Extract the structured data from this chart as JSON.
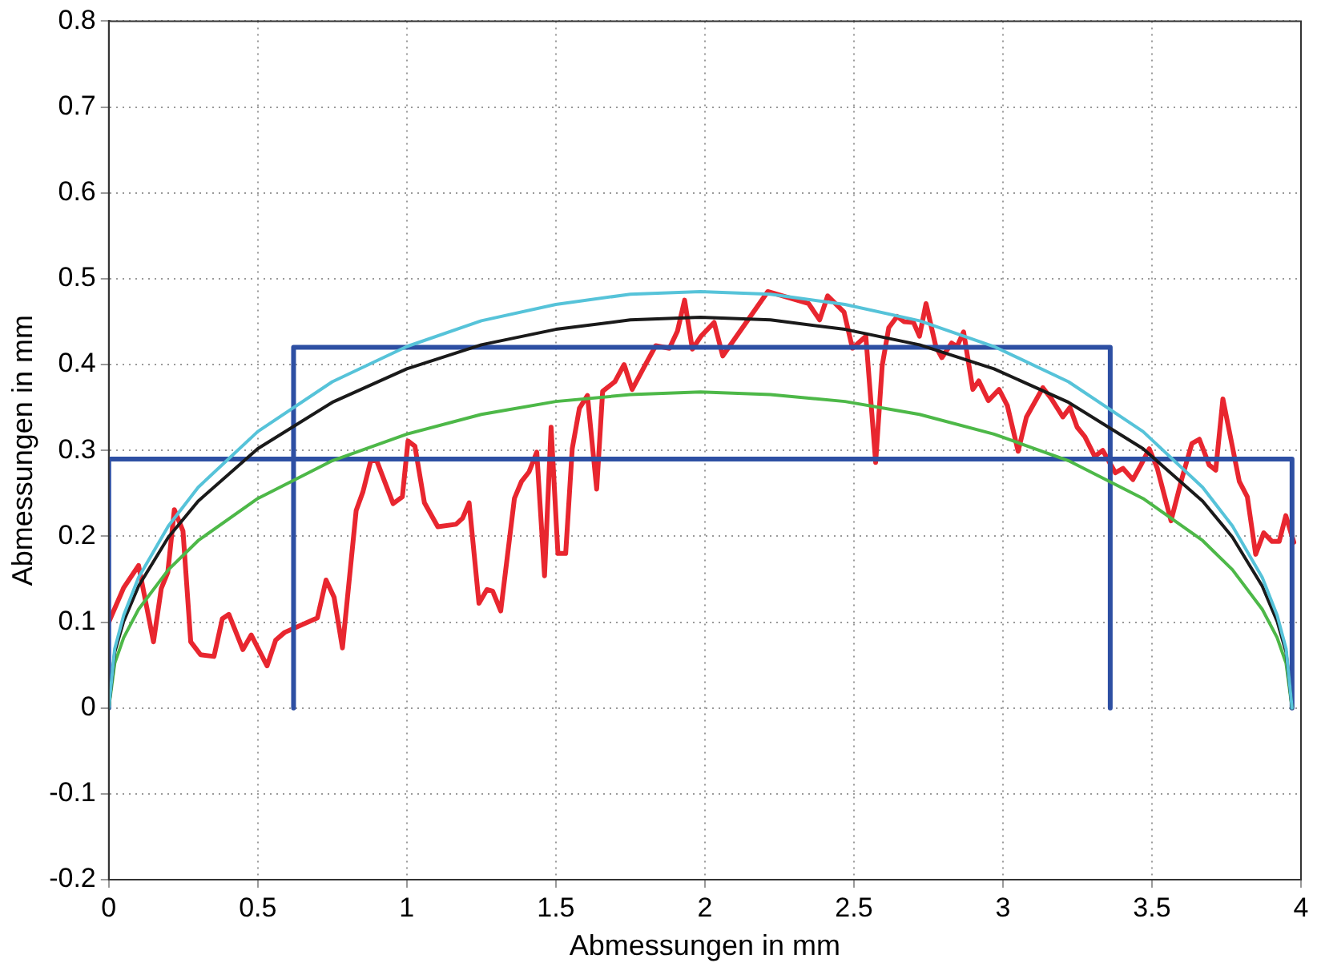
{
  "chart_data": {
    "type": "line",
    "xlabel": "Abmessungen in mm",
    "ylabel": "Abmessungen in mm",
    "xlim": [
      0,
      4
    ],
    "ylim": [
      -0.2,
      0.8
    ],
    "xticks": [
      0,
      0.5,
      1,
      1.5,
      2,
      2.5,
      3,
      3.5,
      4
    ],
    "yticks": [
      -0.2,
      -0.1,
      0,
      0.1,
      0.2,
      0.3,
      0.4,
      0.5,
      0.6,
      0.7,
      0.8
    ],
    "grid": true,
    "legend": false,
    "marker": "none",
    "line_style": "solid",
    "series": [
      {
        "color": "#56c3d9",
        "x": [
          0,
          0.02,
          0.05,
          0.1,
          0.2,
          0.3,
          0.5,
          0.75,
          1,
          1.25,
          1.5,
          1.75,
          1.985,
          2.22,
          2.47,
          2.72,
          2.97,
          3.22,
          3.47,
          3.67,
          3.77,
          3.87,
          3.92,
          3.95,
          3.97
        ],
        "values": [
          0,
          0.069,
          0.108,
          0.152,
          0.212,
          0.257,
          0.322,
          0.38,
          0.421,
          0.451,
          0.47,
          0.482,
          0.485,
          0.482,
          0.47,
          0.451,
          0.421,
          0.38,
          0.322,
          0.257,
          0.212,
          0.152,
          0.108,
          0.069,
          0
        ]
      },
      {
        "color": "#1a1a1a",
        "x": [
          0,
          0.02,
          0.05,
          0.1,
          0.2,
          0.3,
          0.5,
          0.75,
          1,
          1.25,
          1.5,
          1.75,
          1.985,
          2.22,
          2.47,
          2.72,
          2.97,
          3.22,
          3.47,
          3.67,
          3.77,
          3.87,
          3.92,
          3.95,
          3.97
        ],
        "values": [
          0,
          0.065,
          0.101,
          0.142,
          0.199,
          0.241,
          0.302,
          0.356,
          0.395,
          0.423,
          0.441,
          0.452,
          0.455,
          0.452,
          0.441,
          0.423,
          0.395,
          0.356,
          0.302,
          0.241,
          0.199,
          0.142,
          0.101,
          0.065,
          0
        ]
      },
      {
        "color": "#4db848",
        "x": [
          0,
          0.02,
          0.05,
          0.1,
          0.2,
          0.3,
          0.5,
          0.75,
          1,
          1.25,
          1.5,
          1.75,
          1.985,
          2.22,
          2.47,
          2.72,
          2.97,
          3.22,
          3.47,
          3.67,
          3.77,
          3.87,
          3.92,
          3.95,
          3.97
        ],
        "values": [
          0,
          0.052,
          0.082,
          0.115,
          0.161,
          0.195,
          0.244,
          0.288,
          0.319,
          0.342,
          0.357,
          0.365,
          0.368,
          0.365,
          0.357,
          0.342,
          0.319,
          0.288,
          0.244,
          0.195,
          0.161,
          0.115,
          0.082,
          0.052,
          0
        ]
      },
      {
        "color": "#2d4fa3",
        "x": [
          0,
          0,
          3.97,
          3.97
        ],
        "values": [
          0,
          0.29,
          0.29,
          0
        ]
      },
      {
        "color": "#2d4fa3",
        "x": [
          0.62,
          0.62,
          3.36,
          3.36
        ],
        "values": [
          0,
          0.42,
          0.42,
          0
        ]
      },
      {
        "color": "#e8262f",
        "x": [
          0,
          0.05,
          0.1,
          0.15,
          0.176,
          0.198,
          0.22,
          0.249,
          0.275,
          0.308,
          0.353,
          0.381,
          0.403,
          0.45,
          0.478,
          0.531,
          0.56,
          0.59,
          0.7,
          0.729,
          0.756,
          0.784,
          0.83,
          0.853,
          0.879,
          0.899,
          0.954,
          0.985,
          1.004,
          1.027,
          1.059,
          1.104,
          1.165,
          1.187,
          1.209,
          1.242,
          1.269,
          1.288,
          1.315,
          1.361,
          1.385,
          1.41,
          1.436,
          1.462,
          1.484,
          1.507,
          1.533,
          1.555,
          1.579,
          1.606,
          1.637,
          1.657,
          1.698,
          1.729,
          1.756,
          1.799,
          1.835,
          1.881,
          1.908,
          1.932,
          1.958,
          1.987,
          2.031,
          2.06,
          2.211,
          2.348,
          2.385,
          2.412,
          2.467,
          2.495,
          2.54,
          2.573,
          2.595,
          2.617,
          2.645,
          2.668,
          2.7,
          2.72,
          2.742,
          2.775,
          2.795,
          2.828,
          2.846,
          2.868,
          2.899,
          2.919,
          2.951,
          2.987,
          3.015,
          3.051,
          3.079,
          3.134,
          3.161,
          3.201,
          3.225,
          3.249,
          3.275,
          3.308,
          3.335,
          3.377,
          3.403,
          3.436,
          3.463,
          3.491,
          3.518,
          3.564,
          3.601,
          3.634,
          3.659,
          3.692,
          3.714,
          3.738,
          3.793,
          3.82,
          3.848,
          3.875,
          3.903,
          3.927,
          3.949,
          3.976
        ],
        "values": [
          0.1,
          0.14,
          0.166,
          0.077,
          0.139,
          0.158,
          0.231,
          0.206,
          0.077,
          0.062,
          0.06,
          0.104,
          0.109,
          0.068,
          0.085,
          0.049,
          0.079,
          0.088,
          0.105,
          0.149,
          0.129,
          0.07,
          0.23,
          0.252,
          0.288,
          0.288,
          0.238,
          0.246,
          0.311,
          0.305,
          0.239,
          0.211,
          0.214,
          0.221,
          0.239,
          0.122,
          0.138,
          0.136,
          0.113,
          0.244,
          0.264,
          0.275,
          0.298,
          0.154,
          0.327,
          0.18,
          0.18,
          0.302,
          0.349,
          0.364,
          0.255,
          0.369,
          0.38,
          0.4,
          0.371,
          0.399,
          0.422,
          0.419,
          0.439,
          0.475,
          0.418,
          0.433,
          0.449,
          0.41,
          0.485,
          0.471,
          0.452,
          0.48,
          0.461,
          0.419,
          0.433,
          0.286,
          0.399,
          0.443,
          0.456,
          0.45,
          0.449,
          0.433,
          0.471,
          0.421,
          0.408,
          0.425,
          0.421,
          0.438,
          0.371,
          0.381,
          0.358,
          0.371,
          0.352,
          0.299,
          0.339,
          0.373,
          0.361,
          0.339,
          0.35,
          0.327,
          0.316,
          0.293,
          0.3,
          0.274,
          0.279,
          0.266,
          0.283,
          0.302,
          0.279,
          0.218,
          0.268,
          0.308,
          0.313,
          0.283,
          0.277,
          0.36,
          0.264,
          0.246,
          0.179,
          0.204,
          0.194,
          0.194,
          0.224,
          0.193
        ]
      }
    ]
  }
}
